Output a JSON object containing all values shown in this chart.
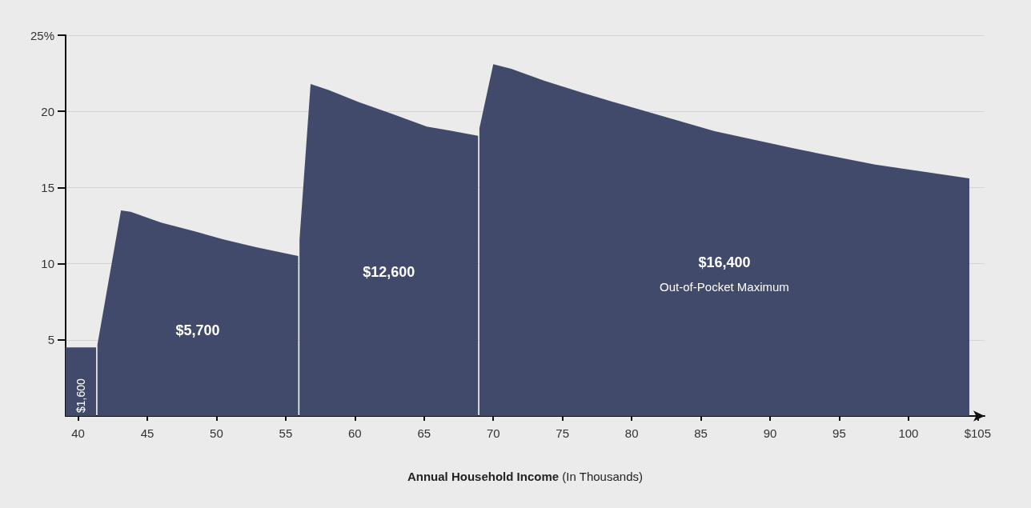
{
  "chart_data": {
    "type": "area",
    "xlabel": "Annual Household Income (In Thousands)",
    "series": [
      {
        "color": "#414a6a",
        "x": [
          39.1,
          41.3
        ],
        "values": [
          4.5,
          4.5
        ]
      },
      {
        "color": "#414a6a",
        "x": [
          41.4,
          43.1,
          43.8,
          46.0,
          48.5,
          50.5,
          52.8,
          55.9
        ],
        "values": [
          4.7,
          13.5,
          13.4,
          12.7,
          12.1,
          11.6,
          11.1,
          10.5
        ]
      },
      {
        "color": "#414a6a",
        "x": [
          56.0,
          56.8,
          58.1,
          60.3,
          62.8,
          65.2,
          66.8,
          68.9
        ],
        "values": [
          11.6,
          21.8,
          21.4,
          20.6,
          19.8,
          19.0,
          18.75,
          18.4
        ]
      },
      {
        "color": "#414a6a",
        "x": [
          69.0,
          70.0,
          71.3,
          73.7,
          76.5,
          79.5,
          81.4,
          86.0,
          91.8,
          97.6,
          104.4
        ],
        "values": [
          18.9,
          23.1,
          22.8,
          22.0,
          21.2,
          20.4,
          19.9,
          18.7,
          17.55,
          16.5,
          15.6
        ]
      }
    ],
    "annotations": [
      "$1,600",
      "$5,700",
      "$12,600",
      "$16,400",
      "Out-of-Pocket Maximum"
    ],
    "xlim": [
      39.1,
      105.5
    ],
    "xticks": [
      40,
      45,
      50,
      55,
      60,
      65,
      70,
      75,
      80,
      85,
      90,
      95,
      100,
      {
        "value": 105,
        "label": "$105"
      }
    ],
    "ylim": [
      0,
      25
    ],
    "yticks": [
      5,
      10,
      15,
      20,
      {
        "value": 25,
        "label": "25%"
      }
    ],
    "grid": "y"
  }
}
